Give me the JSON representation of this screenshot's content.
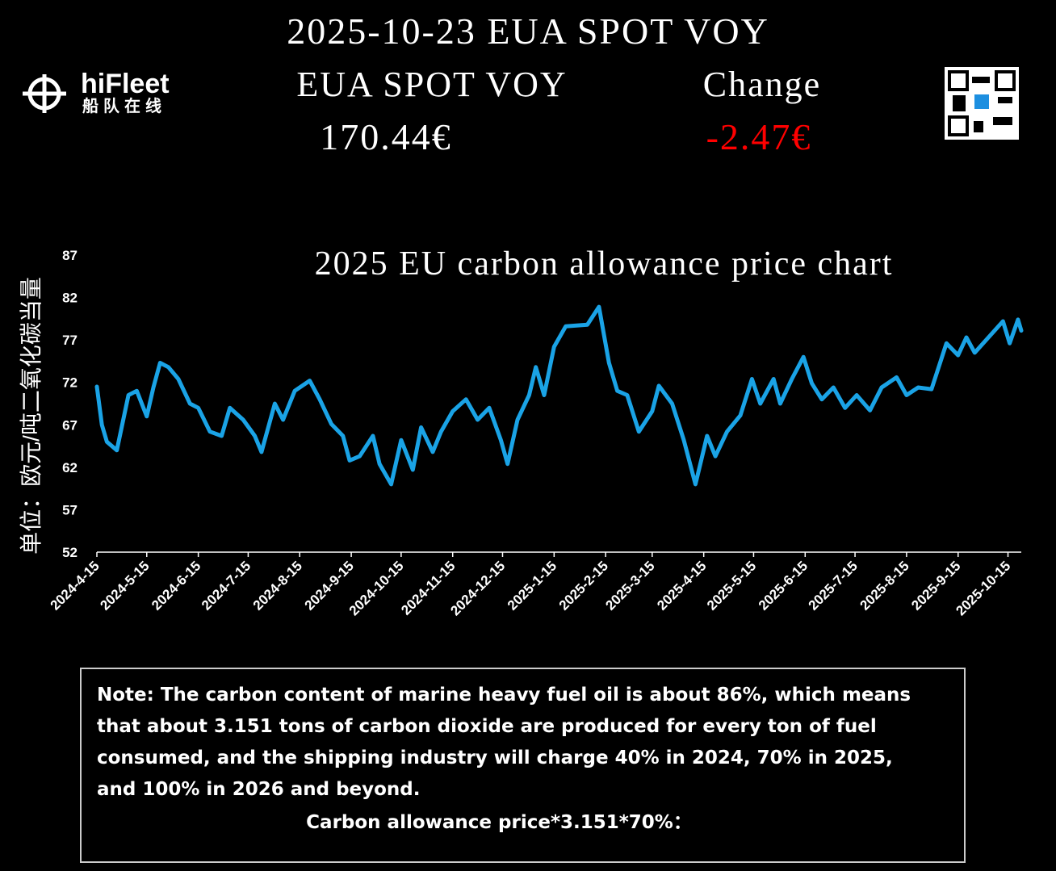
{
  "header": {
    "title": "2025-10-23 EUA SPOT VOY",
    "logo": "hiFleet",
    "logo_sub": "船队在线",
    "price_label": "EUA SPOT VOY",
    "change_label": "Change",
    "price": "170.44€",
    "change": "-2.47€"
  },
  "chart_data": {
    "type": "line",
    "title": "2025 EU carbon allowance price chart",
    "y_label": "单位：欧元/吨二氧化碳当量",
    "color": "#1aa3e6",
    "x": [
      "2024-4-15",
      "2024-4-18",
      "2024-4-21",
      "2024-4-27",
      "2024-5-4",
      "2024-5-9",
      "2024-5-15",
      "2024-5-19",
      "2024-5-23",
      "2024-5-28",
      "2024-6-3",
      "2024-6-10",
      "2024-6-15",
      "2024-6-22",
      "2024-6-29",
      "2024-7-4",
      "2024-7-12",
      "2024-7-19",
      "2024-7-23",
      "2024-7-31",
      "2024-8-5",
      "2024-8-12",
      "2024-8-21",
      "2024-8-27",
      "2024-9-3",
      "2024-9-10",
      "2024-9-14",
      "2024-9-20",
      "2024-9-28",
      "2024-10-2",
      "2024-10-9",
      "2024-10-15",
      "2024-10-22",
      "2024-10-27",
      "2024-11-3",
      "2024-11-8",
      "2024-11-15",
      "2024-11-23",
      "2024-11-30",
      "2024-12-7",
      "2024-12-14",
      "2024-12-18",
      "2024-12-24",
      "2024-12-31",
      "2025-1-4",
      "2025-1-9",
      "2025-1-15",
      "2025-1-22",
      "2025-2-4",
      "2025-2-11",
      "2025-2-17",
      "2025-2-22",
      "2025-2-28",
      "2025-3-7",
      "2025-3-15",
      "2025-3-19",
      "2025-3-27",
      "2025-4-3",
      "2025-4-10",
      "2025-4-17",
      "2025-4-22",
      "2025-4-29",
      "2025-5-7",
      "2025-5-14",
      "2025-5-19",
      "2025-5-27",
      "2025-5-31",
      "2025-6-7",
      "2025-6-14",
      "2025-6-19",
      "2025-6-25",
      "2025-7-2",
      "2025-7-9",
      "2025-7-16",
      "2025-7-24",
      "2025-7-31",
      "2025-8-9",
      "2025-8-15",
      "2025-8-22",
      "2025-8-30",
      "2025-9-8",
      "2025-9-15",
      "2025-9-20",
      "2025-9-25",
      "2025-10-12",
      "2025-10-16",
      "2025-10-21",
      "2025-10-23"
    ],
    "values": [
      71.5,
      67,
      65,
      64,
      70.5,
      71,
      68,
      71.4,
      74.3,
      73.8,
      72.4,
      69.5,
      69,
      66.2,
      65.7,
      69,
      67.6,
      65.7,
      63.8,
      69.5,
      67.6,
      71,
      72.2,
      70,
      67.1,
      65.7,
      62.8,
      63.3,
      65.7,
      62.4,
      60,
      65.2,
      61.7,
      66.7,
      63.8,
      66.2,
      68.6,
      70,
      67.6,
      69,
      65.2,
      62.4,
      67.6,
      70.5,
      73.8,
      70.5,
      76.2,
      78.6,
      78.8,
      80.9,
      74.3,
      71,
      70.5,
      66.2,
      68.6,
      71.6,
      69.5,
      65.2,
      60,
      65.7,
      63.3,
      66.2,
      68.1,
      72.4,
      69.5,
      72.4,
      69.5,
      72.4,
      75,
      71.9,
      70,
      71.4,
      69,
      70.5,
      68.7,
      71.4,
      72.6,
      70.5,
      71.4,
      71.2,
      76.6,
      75.2,
      77.3,
      75.5,
      79.2,
      76.6,
      79.4,
      78.1
    ],
    "xlim": [
      "2024-4-15",
      "2025-10-23"
    ],
    "xticks": [
      "2024-4-15",
      "2024-5-15",
      "2024-6-15",
      "2024-7-15",
      "2024-8-15",
      "2024-9-15",
      "2024-10-15",
      "2024-11-15",
      "2024-12-15",
      "2025-1-15",
      "2025-2-15",
      "2025-3-15",
      "2025-4-15",
      "2025-5-15",
      "2025-6-15",
      "2025-7-15",
      "2025-8-15",
      "2025-9-15",
      "2025-10-15"
    ],
    "ylim": [
      52,
      87
    ],
    "yticks": [
      52,
      57,
      62,
      67,
      72,
      77,
      82,
      87
    ]
  },
  "note": {
    "lines": [
      "Note: The carbon content of marine heavy fuel oil is about 86%, which means",
      "that about 3.151 tons of carbon dioxide are produced for every ton of fuel",
      "consumed, and the shipping industry will charge 40% in 2024, 70% in 2025,",
      "and 100% in 2026 and beyond."
    ],
    "formula": "Carbon allowance price*3.151*70%："
  }
}
